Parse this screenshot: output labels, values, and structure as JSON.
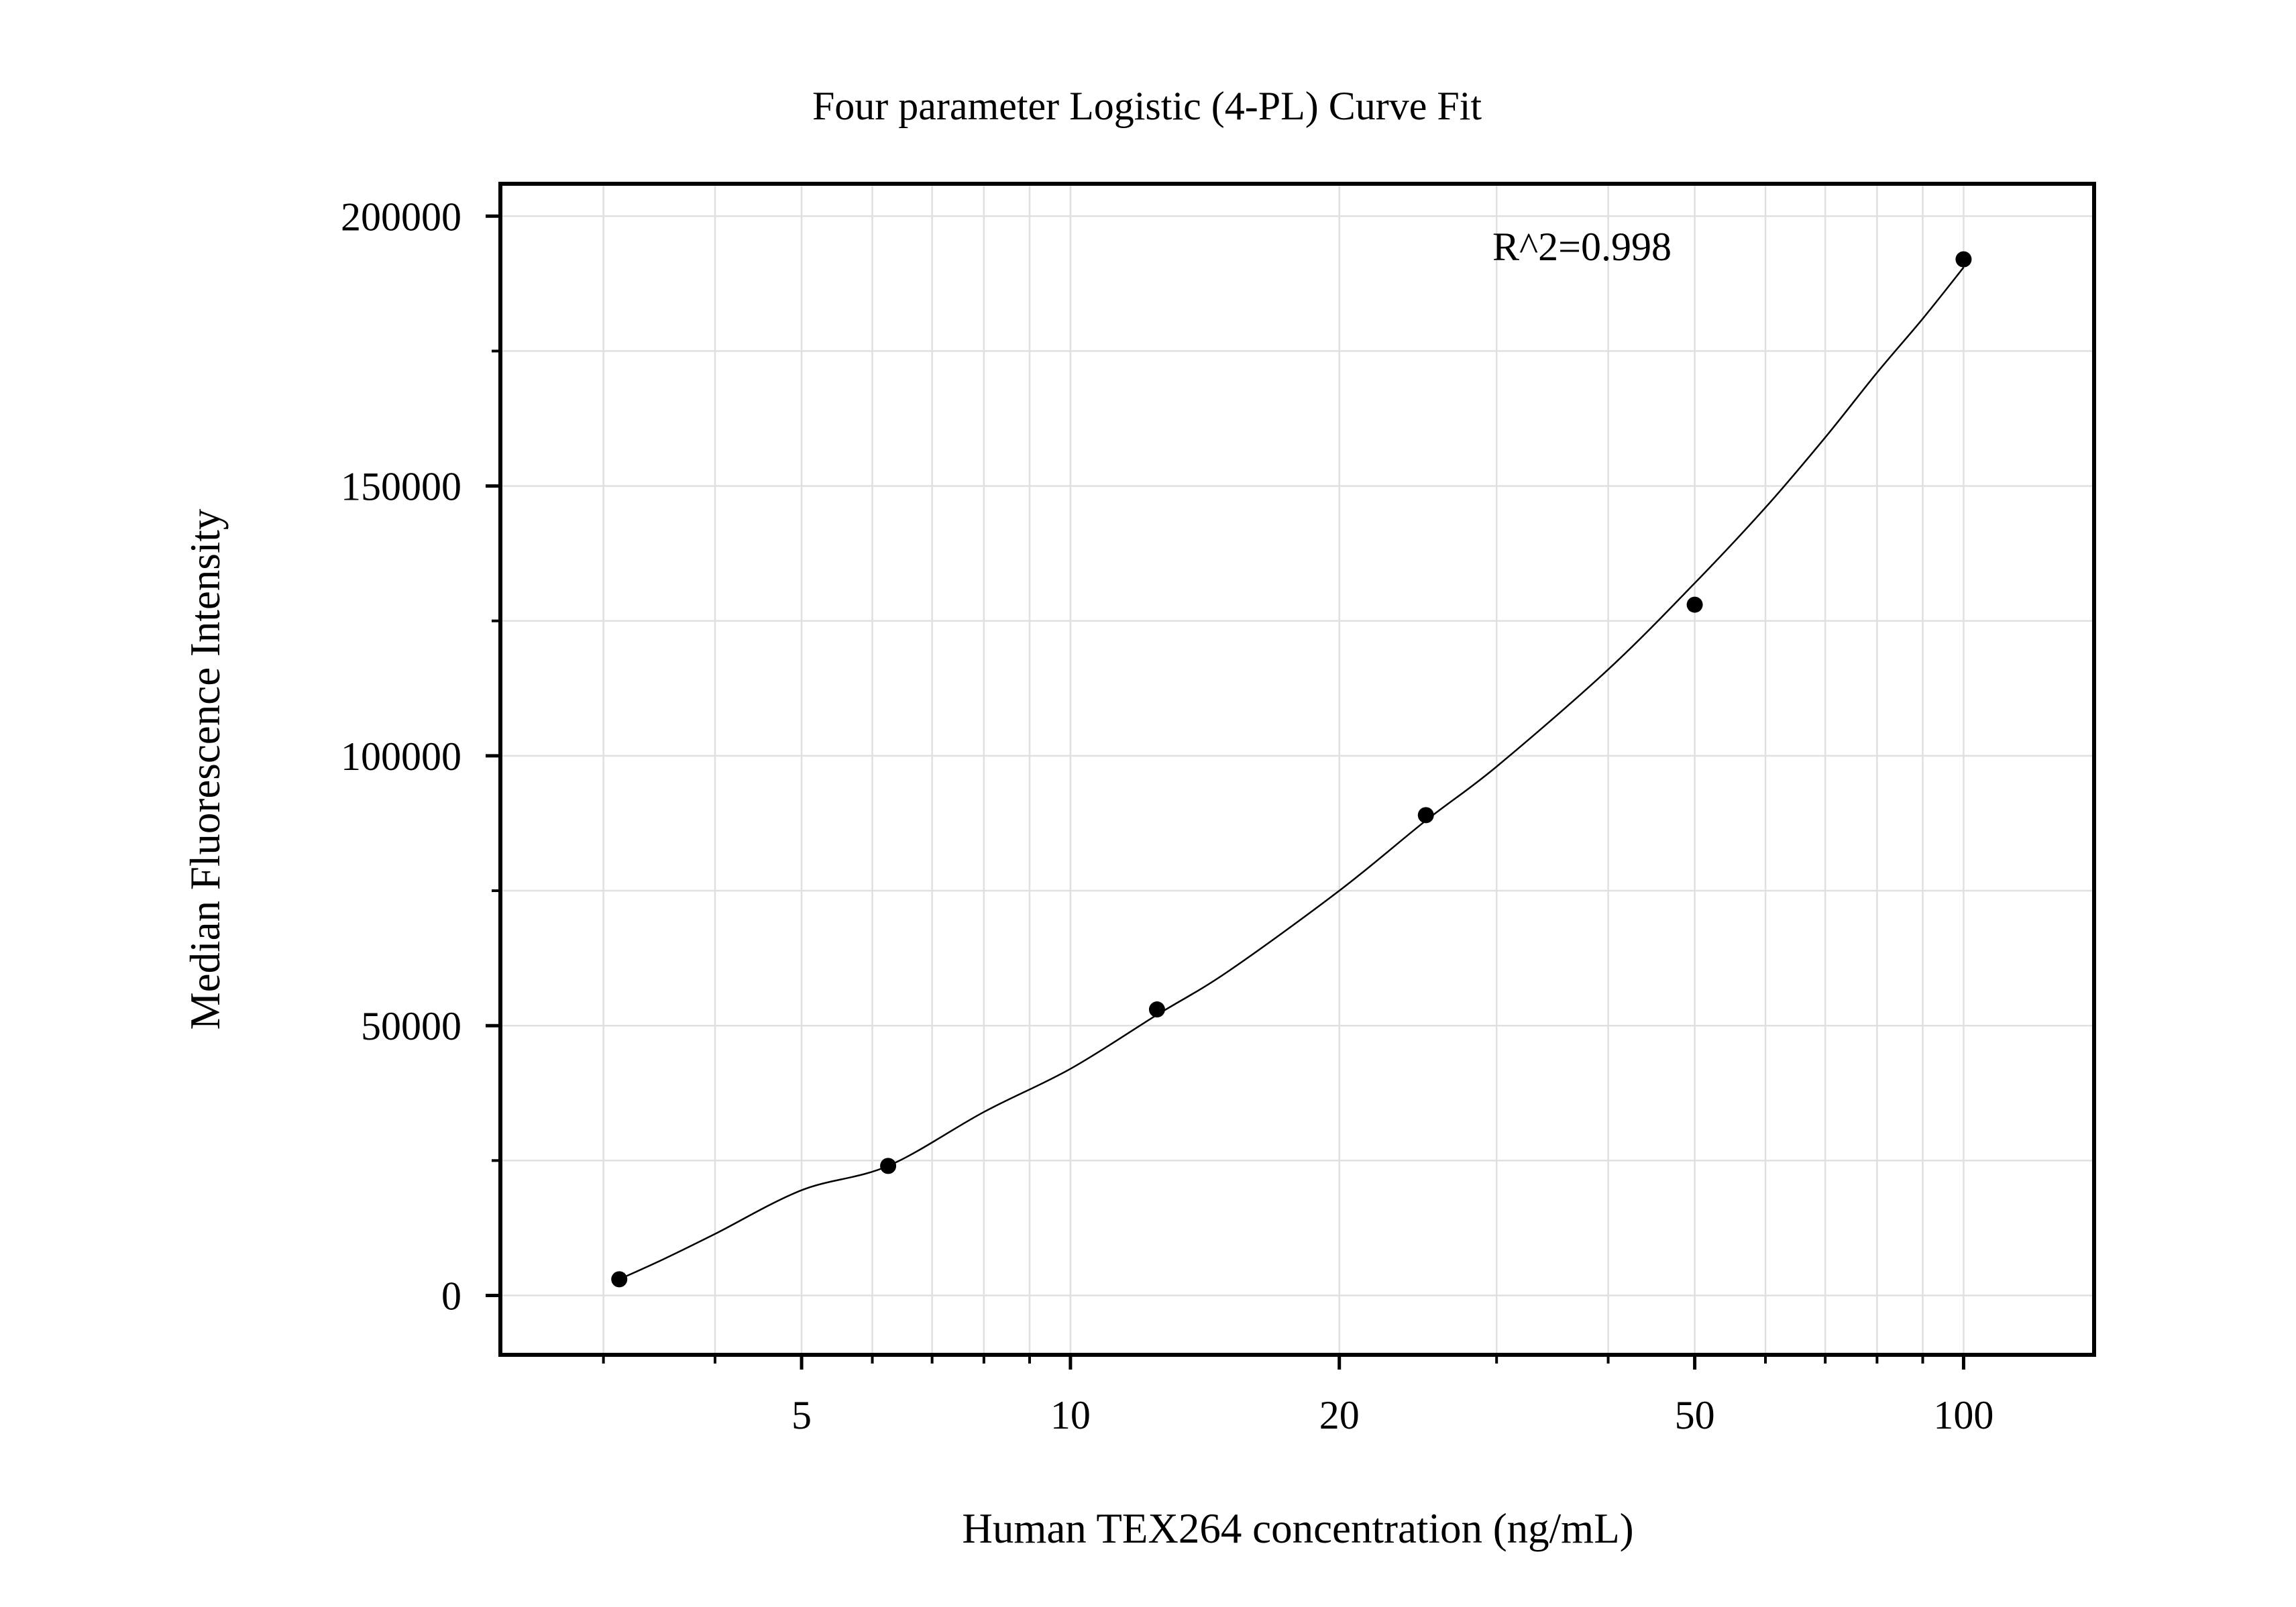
{
  "chart_data": {
    "type": "scatter",
    "title": "Four parameter Logistic (4-PL) Curve Fit",
    "xlabel": "Human TEX264 concentration (ng/mL)",
    "ylabel": "Median Fluorescence Intensity",
    "x_scale": "log",
    "xlim": [
      2.3,
      140
    ],
    "ylim": [
      -11000,
      206000
    ],
    "x_ticks": [
      5,
      10,
      20,
      50,
      100
    ],
    "x_tick_labels": [
      "5",
      "10",
      "20",
      "50",
      "100"
    ],
    "x_minor_ticks": [
      3,
      4,
      6,
      7,
      8,
      9,
      30,
      40,
      60,
      70,
      80,
      90
    ],
    "y_ticks": [
      0,
      50000,
      100000,
      150000,
      200000
    ],
    "y_tick_labels": [
      "0",
      "50000",
      "100000",
      "150000",
      "200000"
    ],
    "y_minor_ticks": [
      25000,
      75000,
      125000,
      175000
    ],
    "grid": true,
    "annotation": "R^2=0.998",
    "series": [
      {
        "type": "scatter",
        "x": [
          3.125,
          6.25,
          12.5,
          25,
          50,
          100
        ],
        "y": [
          3000,
          24000,
          53000,
          89000,
          128000,
          192000
        ]
      },
      {
        "type": "line",
        "x": [
          3.125,
          3.5,
          4,
          5,
          6.25,
          8,
          10,
          12.5,
          15,
          20,
          25,
          30,
          40,
          50,
          60,
          70,
          80,
          90,
          100
        ],
        "y": [
          3000,
          6700,
          11400,
          19500,
          24000,
          34000,
          42000,
          52000,
          60000,
          75000,
          88000,
          98000,
          116000,
          132000,
          146000,
          159000,
          171000,
          181000,
          190500
        ]
      }
    ],
    "colors": {
      "marker": "#000000",
      "line": "#000000",
      "grid": "#e0e0e0",
      "frame": "#000000"
    }
  }
}
